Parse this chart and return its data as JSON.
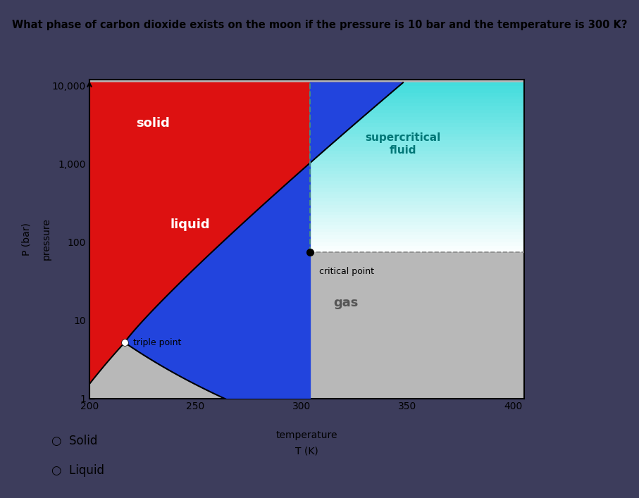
{
  "title": "What phase of carbon dioxide exists on the moon if the pressure is 10 bar and the temperature is 300 K?",
  "title_fontsize": 10.5,
  "xlabel_line1": "temperature",
  "xlabel_line2": "T (K)",
  "ylabel_line1": "pressure",
  "ylabel_line2": "P (bar)",
  "xlim": [
    200,
    405
  ],
  "ylim_log": [
    1,
    12000
  ],
  "x_ticks": [
    200,
    250,
    300,
    350,
    400
  ],
  "y_ticks": [
    1,
    10,
    100,
    1000,
    10000
  ],
  "y_tick_labels": [
    "1",
    "10",
    "100",
    "1,000",
    "10,000"
  ],
  "triple_point_T": 216.6,
  "triple_point_P": 5.18,
  "critical_point_T": 304.2,
  "critical_point_P": 73.8,
  "solid_color": "#dd1111",
  "liquid_color_left": "#2244dd",
  "liquid_color_right": "#3344cc",
  "supercritical_color_top": "#44dddd",
  "supercritical_color_bottom": "#ffffff",
  "gas_color": "#b8b8b8",
  "outer_bg": "#3d3d5c",
  "plot_bg": "#c8c8c8",
  "answer_options": [
    "Solid",
    "Liquid"
  ],
  "solid_label": "solid",
  "liquid_label": "liquid",
  "supercritical_label": "supercritical\nfluid",
  "gas_label": "gas",
  "triple_label": "triple point",
  "critical_label": "critical point"
}
